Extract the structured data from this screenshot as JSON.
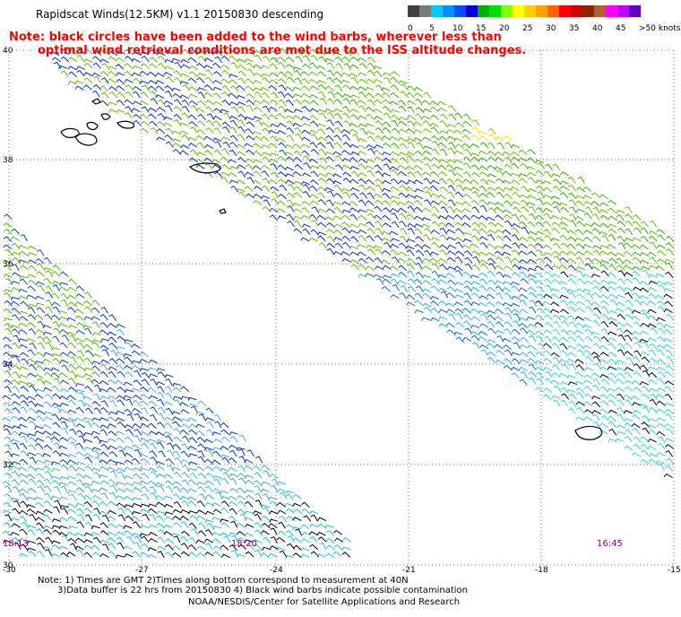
{
  "header": {
    "title": "Rapidscat Winds(12.5KM) v1.1 20150830 descending",
    "note_line1": "Note: black circles have been added to the wind barbs, wherever less than",
    "note_line2": "optimal wind retrieval conditions are met due to the ISS altitude changes."
  },
  "legend": {
    "units": ">50 knots",
    "ticks": [
      "0",
      "5",
      "10",
      "15",
      "20",
      "25",
      "30",
      "35",
      "40",
      "45",
      ">50 knots"
    ],
    "colors": [
      "#404040",
      "#7a7a7a",
      "#00c8ff",
      "#0090ff",
      "#0050ff",
      "#0000d8",
      "#00b000",
      "#00e000",
      "#80ff00",
      "#ffff00",
      "#ffd000",
      "#ffa000",
      "#ff6000",
      "#ff0000",
      "#d00000",
      "#8b2500",
      "#b06030",
      "#ff00ff",
      "#c000ff",
      "#6000c0"
    ]
  },
  "axes": {
    "lat_ticks": [
      "40",
      "38",
      "36",
      "34",
      "32",
      "30"
    ],
    "lon_ticks": [
      "-30",
      "-27",
      "-24",
      "-21",
      "-18",
      "-15"
    ]
  },
  "time_labels": [
    "18:13",
    "18:20",
    "16:45"
  ],
  "colors": {
    "time_label": "#800080",
    "grid": "#555555",
    "note": "#ff0000"
  },
  "footer": {
    "line1": "Note: 1) Times are GMT 2)Times along bottom correspond to measurement at 40N",
    "line2": "3)Data buffer is 22 hrs from 20150830 4) Black wind barbs indicate possible contamination",
    "credit": "NOAA/NESDIS/Center for Satellite Applications and Research"
  }
}
